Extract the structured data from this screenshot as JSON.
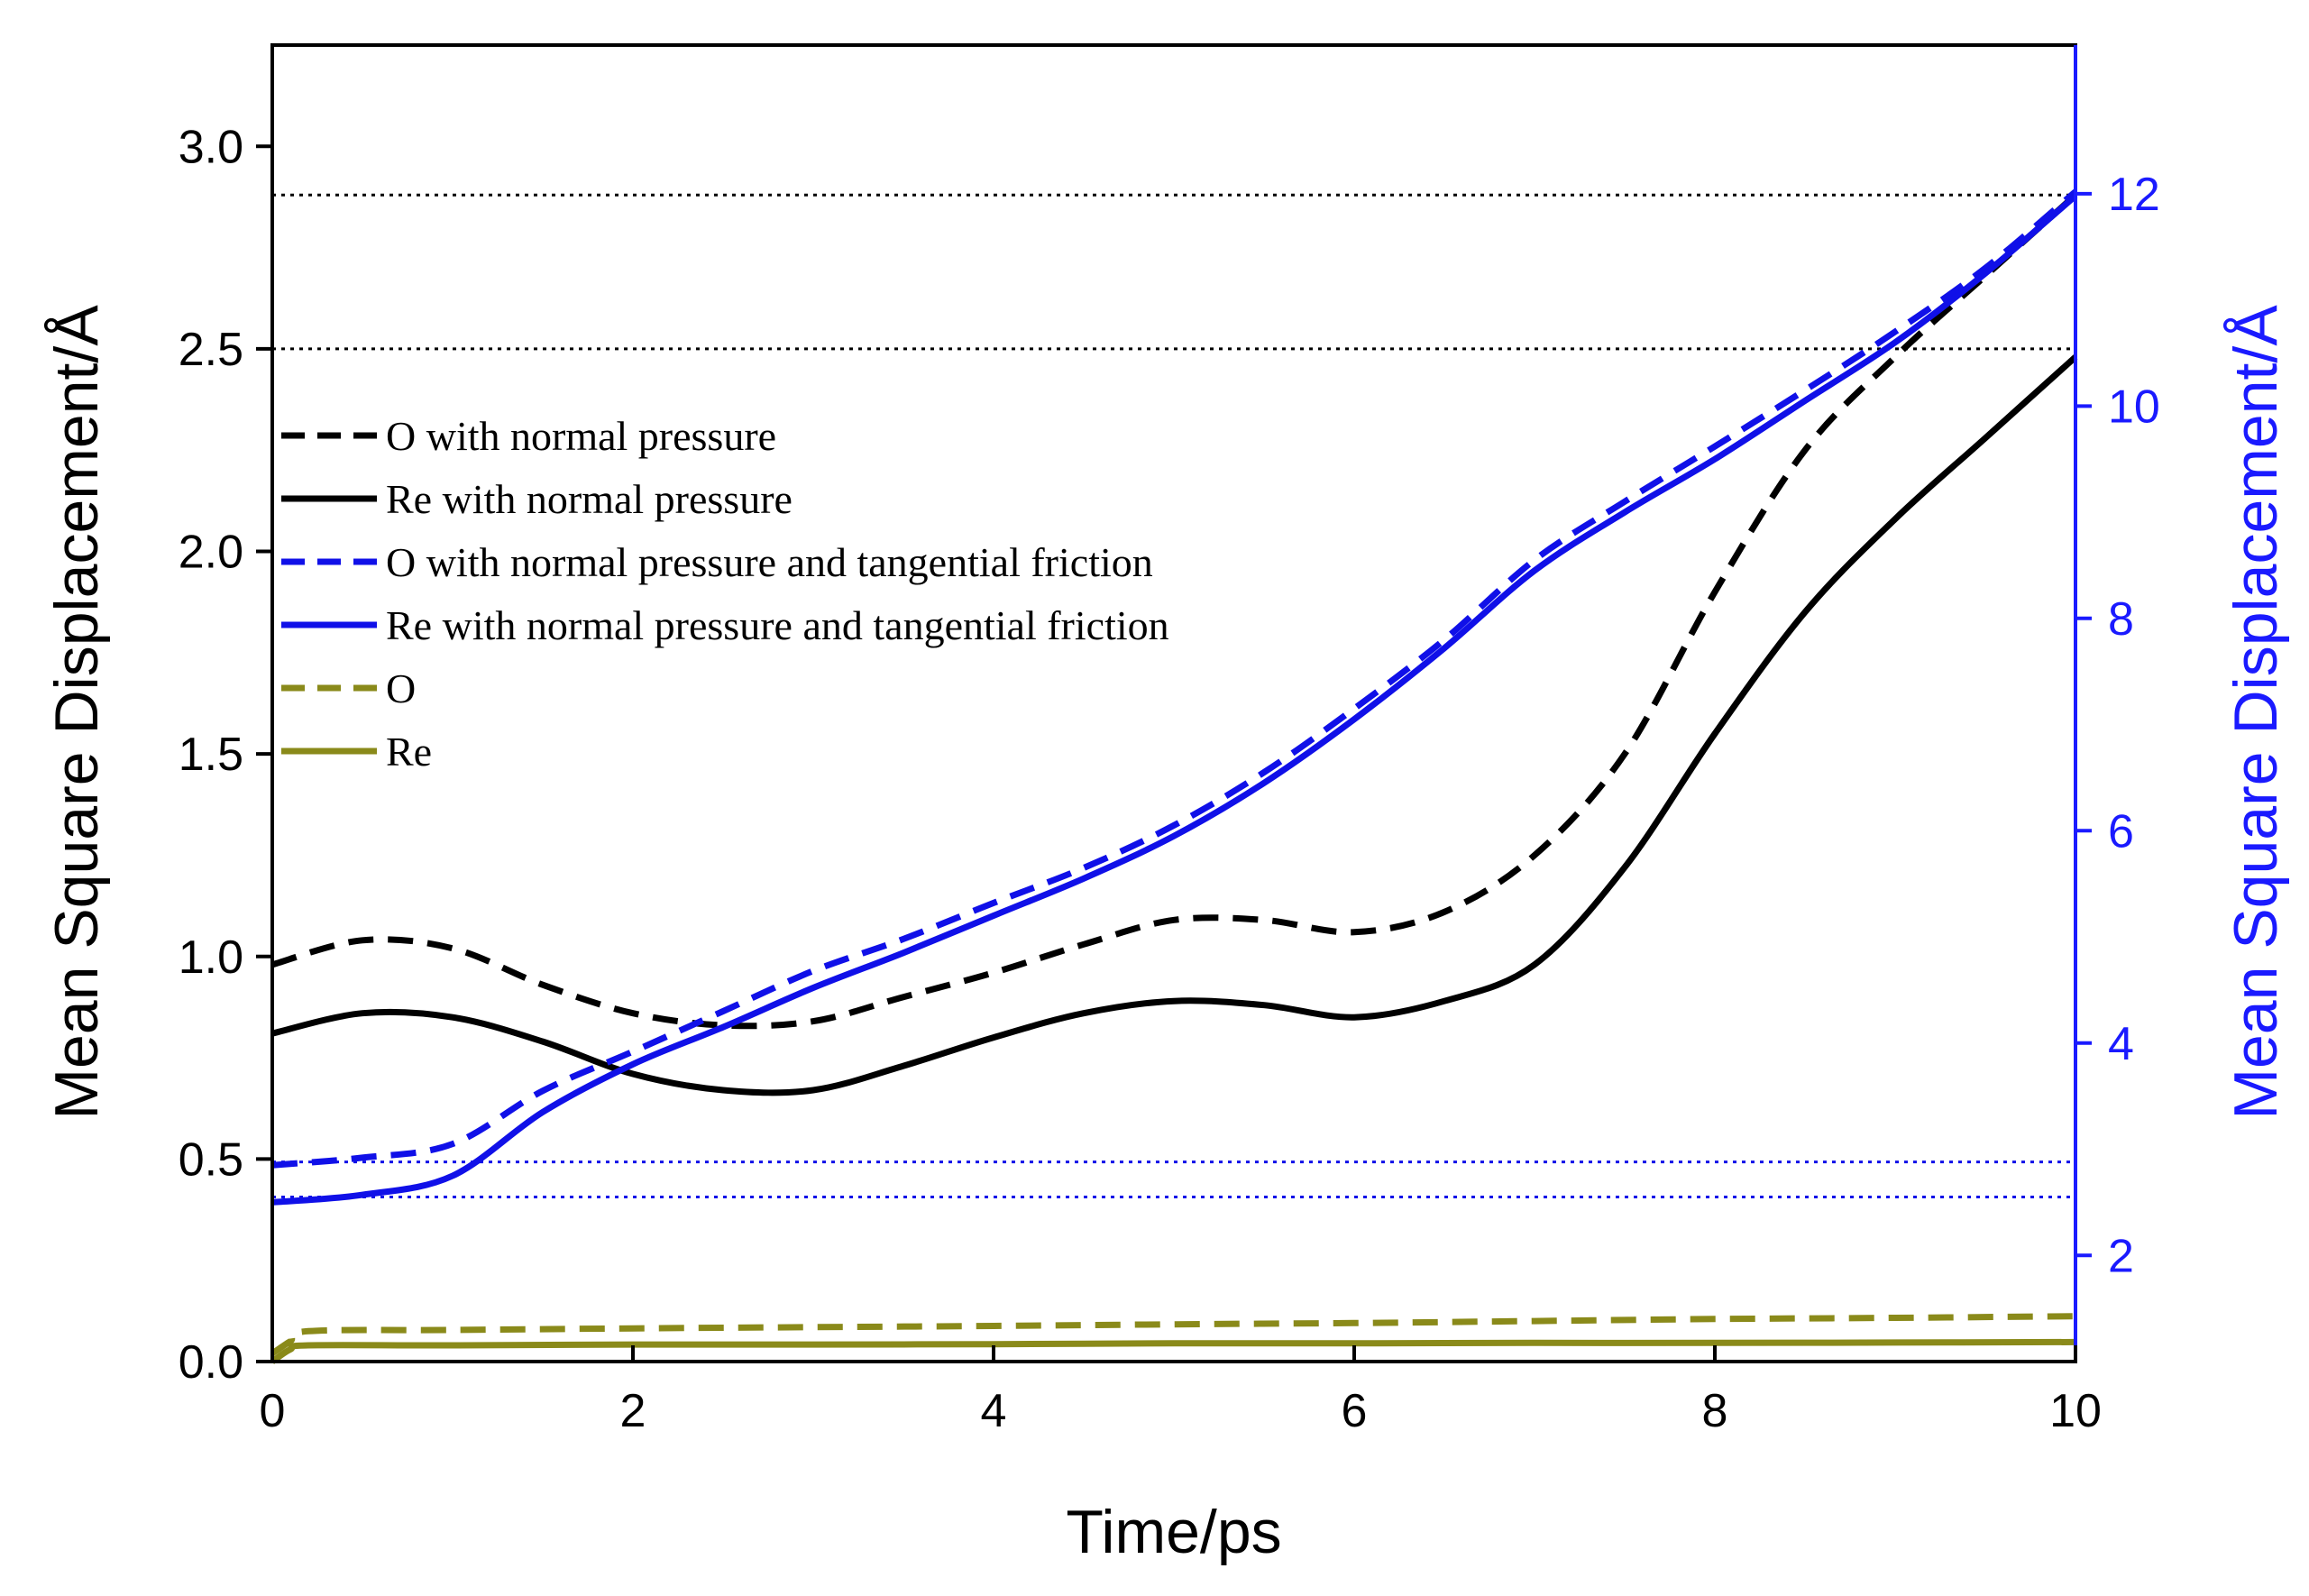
{
  "chart_data": {
    "type": "line",
    "xlabel": "Time/ps",
    "ylabel_left": "Mean Square Displacement/Å",
    "ylabel_right": "Mean Square Displacement/Å",
    "xlim": [
      0,
      10
    ],
    "ylim_left": [
      0,
      3.25
    ],
    "ylim_right": [
      1,
      13.4
    ],
    "x_ticks": [
      "0",
      "2",
      "4",
      "6",
      "8",
      "10"
    ],
    "y_left_ticks": [
      "0.0",
      "0.5",
      "1.0",
      "1.5",
      "2.0",
      "2.5",
      "3.0"
    ],
    "y_right_ticks": [
      "2",
      "4",
      "6",
      "8",
      "10",
      "12"
    ],
    "colors": {
      "black": "#000000",
      "blue": "#1010e8",
      "olive": "#8a8a1a",
      "right_axis": "#1a1aff"
    },
    "reference_lines": [
      {
        "axis": "left",
        "y": 2.88,
        "color": "#000000"
      },
      {
        "axis": "left",
        "y": 2.5,
        "color": "#000000"
      },
      {
        "axis": "right",
        "y": 2.88,
        "color": "#1010e8"
      },
      {
        "axis": "right",
        "y": 2.55,
        "color": "#1010e8"
      }
    ],
    "series": [
      {
        "name": "O with normal pressure",
        "axis": "left",
        "color": "#000000",
        "dash": true,
        "x": [
          0,
          0.5,
          1,
          1.5,
          2,
          2.5,
          3,
          3.5,
          4,
          4.5,
          5,
          5.5,
          6,
          6.5,
          7,
          7.5,
          8,
          8.5,
          9,
          9.5,
          10
        ],
        "y": [
          0.98,
          1.04,
          1.02,
          0.93,
          0.86,
          0.83,
          0.84,
          0.9,
          0.96,
          1.03,
          1.09,
          1.09,
          1.06,
          1.11,
          1.25,
          1.5,
          1.9,
          2.25,
          2.48,
          2.68,
          2.88
        ]
      },
      {
        "name": "Re with normal pressure",
        "axis": "left",
        "color": "#000000",
        "dash": false,
        "x": [
          0,
          0.5,
          1,
          1.5,
          2,
          2.5,
          3,
          3.5,
          4,
          4.5,
          5,
          5.5,
          6,
          6.5,
          7,
          7.5,
          8,
          8.5,
          9,
          9.5,
          10
        ],
        "y": [
          0.81,
          0.86,
          0.85,
          0.79,
          0.71,
          0.67,
          0.67,
          0.73,
          0.8,
          0.86,
          0.89,
          0.88,
          0.85,
          0.89,
          0.98,
          1.22,
          1.55,
          1.85,
          2.08,
          2.28,
          2.48
        ]
      },
      {
        "name": "O with normal pressure and tangential friction",
        "axis": "right",
        "color": "#1010e8",
        "dash": true,
        "x": [
          0,
          0.5,
          1,
          1.5,
          2,
          2.5,
          3,
          3.5,
          4,
          4.5,
          5,
          5.5,
          6,
          6.5,
          7,
          7.5,
          8,
          8.5,
          9,
          9.5,
          10
        ],
        "y": [
          2.85,
          2.92,
          3.05,
          3.55,
          3.92,
          4.3,
          4.68,
          4.98,
          5.32,
          5.65,
          6.05,
          6.55,
          7.15,
          7.8,
          8.55,
          9.1,
          9.62,
          10.15,
          10.7,
          11.3,
          12.02
        ]
      },
      {
        "name": "Re with normal pressure and tangential friction",
        "axis": "right",
        "color": "#1010e8",
        "dash": false,
        "x": [
          0,
          0.5,
          1,
          1.5,
          2,
          2.5,
          3,
          3.5,
          4,
          4.5,
          5,
          5.5,
          6,
          6.5,
          7,
          7.5,
          8,
          8.5,
          9,
          9.5,
          10
        ],
        "y": [
          2.5,
          2.57,
          2.75,
          3.35,
          3.8,
          4.15,
          4.52,
          4.85,
          5.2,
          5.55,
          5.95,
          6.45,
          7.05,
          7.72,
          8.45,
          9.0,
          9.5,
          10.05,
          10.6,
          11.25,
          11.98
        ]
      },
      {
        "name": "O",
        "axis": "left",
        "color": "#8a8a1a",
        "dash": true,
        "x": [
          0,
          0.1,
          0.2,
          1,
          2,
          3,
          4,
          5,
          6,
          7,
          8,
          9,
          10
        ],
        "y": [
          0.02,
          0.05,
          0.075,
          0.078,
          0.082,
          0.085,
          0.088,
          0.092,
          0.095,
          0.1,
          0.105,
          0.108,
          0.112
        ]
      },
      {
        "name": "Re",
        "axis": "left",
        "color": "#8a8a1a",
        "dash": false,
        "x": [
          0,
          0.1,
          0.2,
          1,
          2,
          3,
          4,
          5,
          6,
          7,
          8,
          9,
          10
        ],
        "y": [
          0.0,
          0.03,
          0.04,
          0.04,
          0.042,
          0.042,
          0.043,
          0.045,
          0.045,
          0.046,
          0.046,
          0.047,
          0.048
        ]
      }
    ]
  }
}
